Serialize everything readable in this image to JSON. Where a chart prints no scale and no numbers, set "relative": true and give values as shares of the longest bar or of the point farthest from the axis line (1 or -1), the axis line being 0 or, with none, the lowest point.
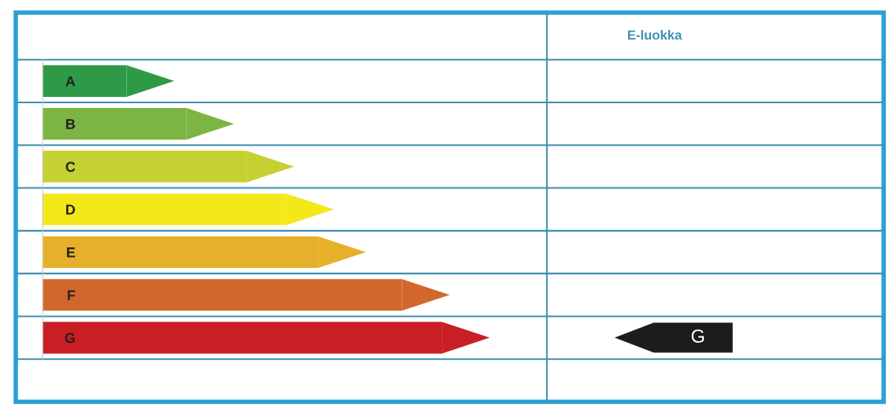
{
  "chart_data": {
    "type": "bar",
    "orientation": "horizontal",
    "relative": true,
    "grid": true,
    "categories": [
      "A",
      "B",
      "C",
      "D",
      "E",
      "F",
      "G"
    ],
    "values": [
      0.21,
      0.36,
      0.51,
      0.61,
      0.69,
      0.9,
      1.0
    ],
    "colors": [
      "#2e9a48",
      "#7db544",
      "#c5d130",
      "#f5e81a",
      "#e6b02a",
      "#d2672c",
      "#c81e24"
    ],
    "annotations": [
      "E-luokka",
      "G"
    ]
  }
}
